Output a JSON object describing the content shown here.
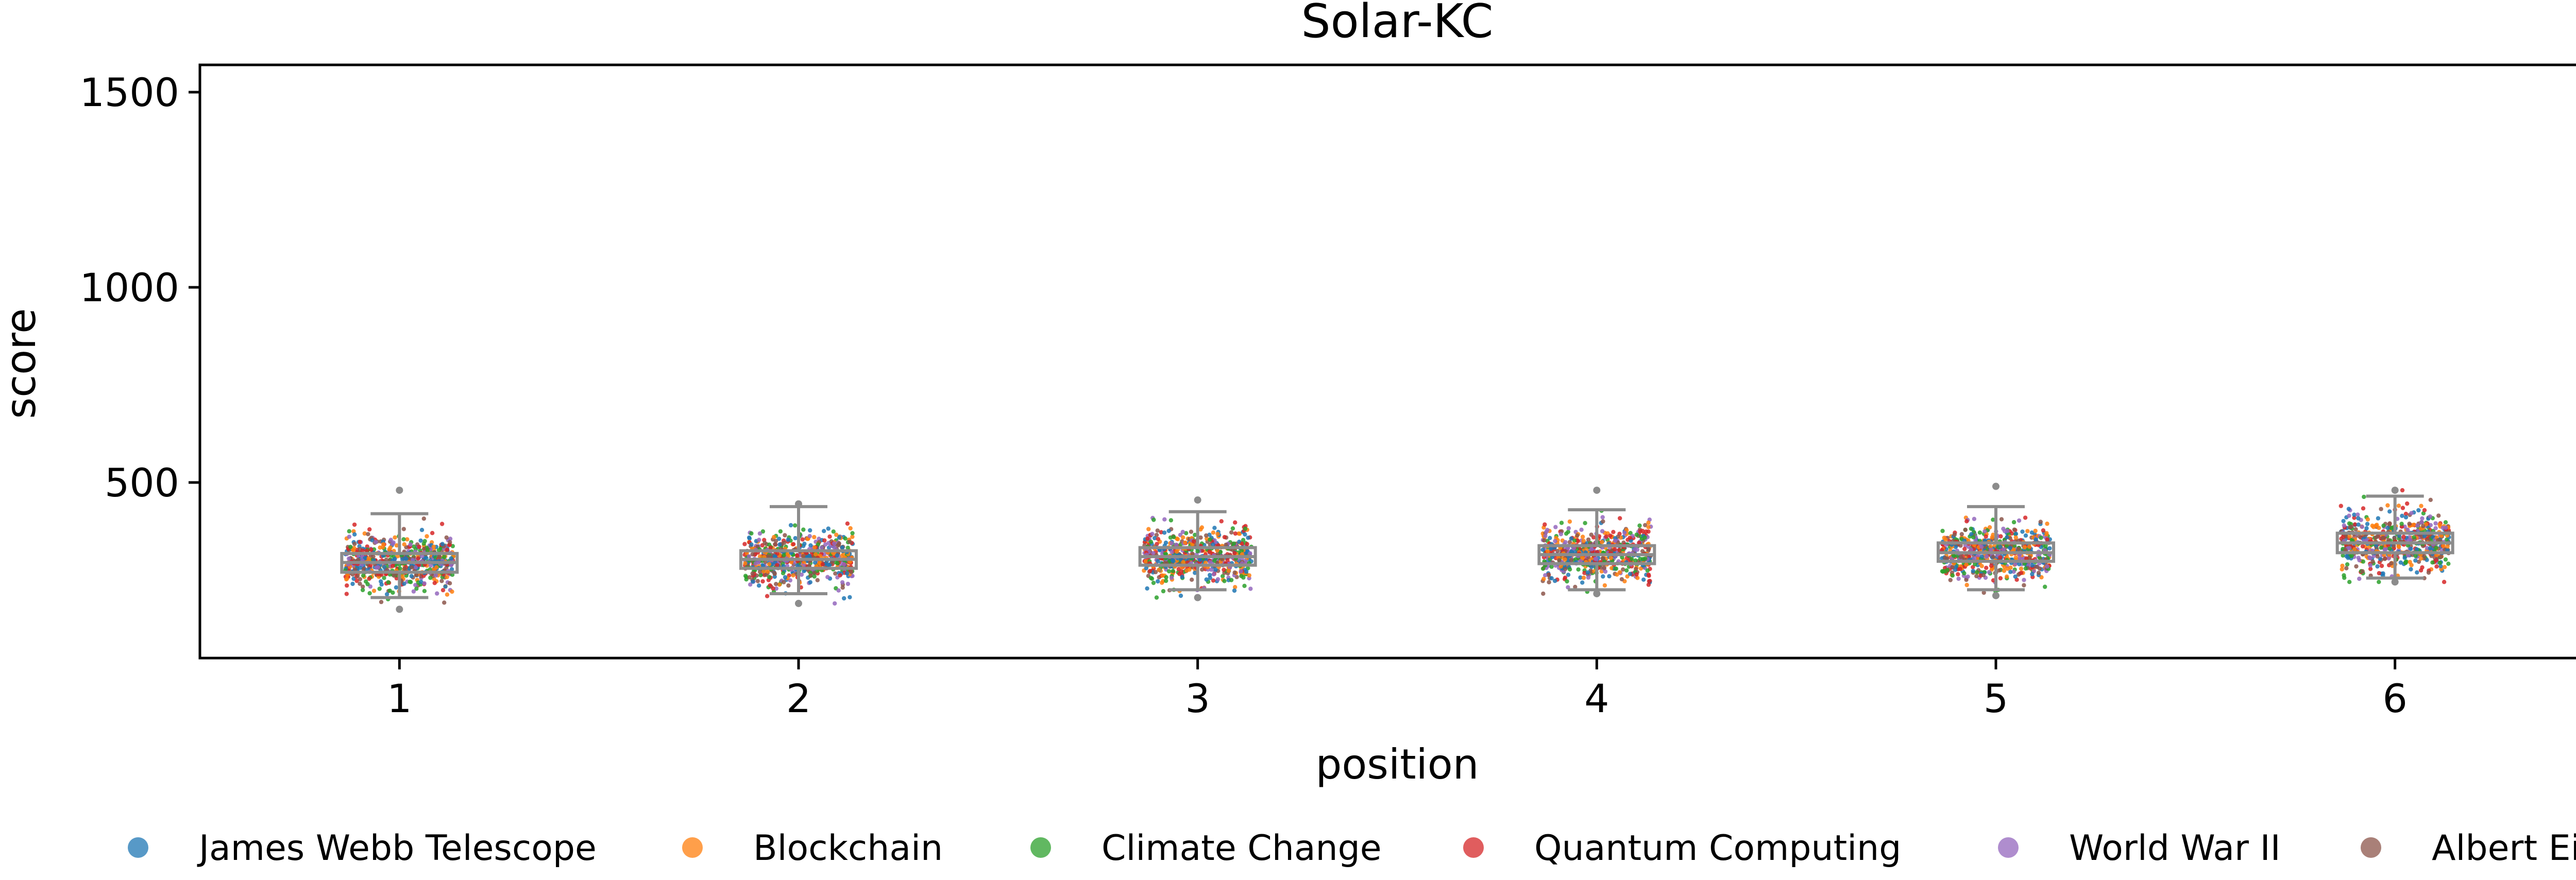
{
  "chart_data": {
    "type": "scatter",
    "subtype": "strip plot with box plots",
    "title": "Solar-KC",
    "xlabel": "position",
    "ylabel": "score",
    "categories": [
      "1",
      "2",
      "3",
      "4",
      "5",
      "6"
    ],
    "ylim": [
      50,
      1570
    ],
    "yticks": [
      500,
      1000,
      1500
    ],
    "grid": false,
    "legend_position": "bottom",
    "series": [
      {
        "name": "James Webb Telescope",
        "color": "#1f77b4"
      },
      {
        "name": "Blockchain",
        "color": "#ff7f0e"
      },
      {
        "name": "Climate Change",
        "color": "#2ca02c"
      },
      {
        "name": "Quantum Computing",
        "color": "#d62728"
      },
      {
        "name": "World War II",
        "color": "#9467bd"
      },
      {
        "name": "Albert Einstein",
        "color": "#8c564b"
      }
    ],
    "boxes": [
      {
        "position": "1",
        "whisker_low": 205,
        "q1": 270,
        "median": 295,
        "q3": 318,
        "whisker_high": 420,
        "min": 175,
        "max": 480
      },
      {
        "position": "2",
        "whisker_low": 215,
        "q1": 280,
        "median": 303,
        "q3": 325,
        "whisker_high": 438,
        "min": 190,
        "max": 445
      },
      {
        "position": "3",
        "whisker_low": 225,
        "q1": 288,
        "median": 310,
        "q3": 333,
        "whisker_high": 425,
        "min": 205,
        "max": 455
      },
      {
        "position": "4",
        "whisker_low": 225,
        "q1": 292,
        "median": 315,
        "q3": 338,
        "whisker_high": 430,
        "min": 215,
        "max": 480
      },
      {
        "position": "5",
        "whisker_low": 225,
        "q1": 298,
        "median": 320,
        "q3": 345,
        "whisker_high": 438,
        "min": 210,
        "max": 490
      },
      {
        "position": "6",
        "whisker_low": 255,
        "q1": 320,
        "median": 345,
        "q3": 370,
        "whisker_high": 465,
        "min": 245,
        "max": 480
      }
    ],
    "points_per_position": 600
  },
  "colors": {
    "box_stroke": "#8c8c8c",
    "axis": "#000000"
  }
}
